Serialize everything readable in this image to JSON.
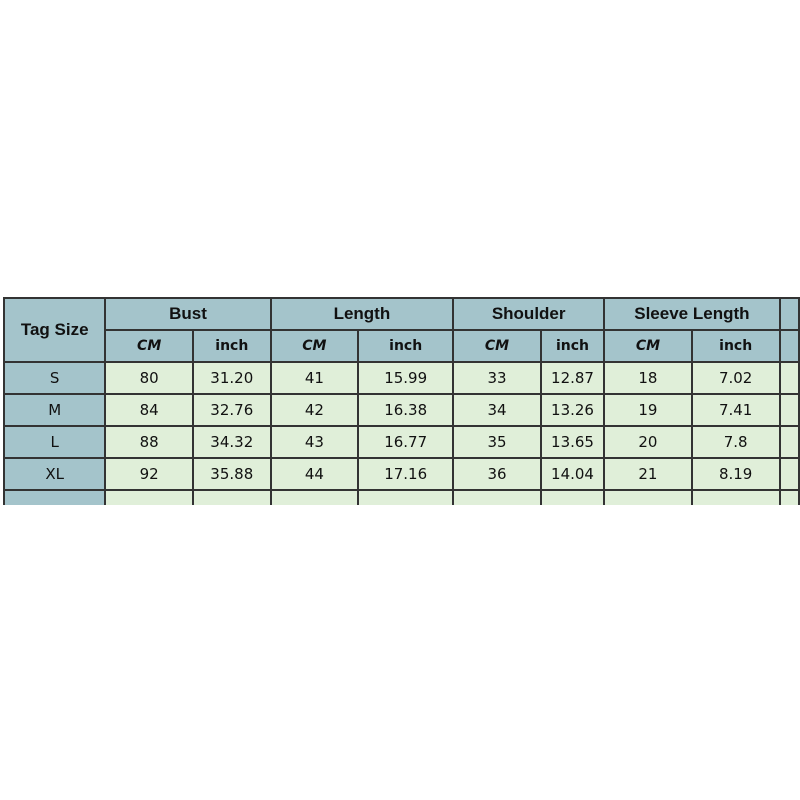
{
  "table": {
    "tag_header": "Tag Size",
    "groups": [
      "Bust",
      "Length",
      "Shoulder",
      "Sleeve Length"
    ],
    "units": [
      "CM",
      "inch"
    ],
    "rows": [
      {
        "size": "S",
        "values": [
          "80",
          "31.20",
          "41",
          "15.99",
          "33",
          "12.87",
          "18",
          "7.02"
        ]
      },
      {
        "size": "M",
        "values": [
          "84",
          "32.76",
          "42",
          "16.38",
          "34",
          "13.26",
          "19",
          "7.41"
        ]
      },
      {
        "size": "L",
        "values": [
          "88",
          "34.32",
          "43",
          "16.77",
          "35",
          "13.65",
          "20",
          "7.8"
        ]
      },
      {
        "size": "XL",
        "values": [
          "92",
          "35.88",
          "44",
          "17.16",
          "36",
          "14.04",
          "21",
          "8.19"
        ]
      }
    ]
  },
  "colors": {
    "header": "#a4c4cb",
    "cell": "#e0efd9",
    "border": "#333333"
  }
}
